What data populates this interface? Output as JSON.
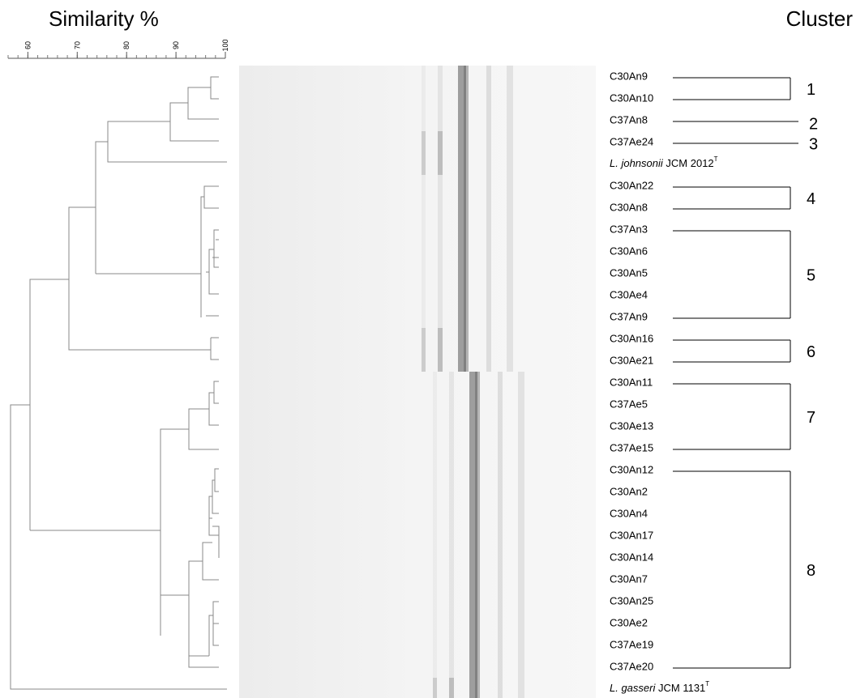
{
  "header": {
    "title": "Similarity %",
    "cluster_title": "Cluster"
  },
  "scale": {
    "xlim": [
      56,
      100
    ],
    "ticks": [
      60,
      70,
      80,
      90,
      100
    ]
  },
  "groups": [
    {
      "cluster": "1",
      "strains": [
        "C30An9",
        "C30An10"
      ]
    },
    {
      "cluster": "2",
      "strains": [
        "C37An8"
      ]
    },
    {
      "cluster": "3",
      "strains": [
        "C37Ae24"
      ]
    },
    {
      "reference": {
        "species": "L. johnsonii",
        "strain": "JCM 2012",
        "sup": "T"
      }
    },
    {
      "cluster": "4",
      "strains": [
        "C30An22",
        "C30An8"
      ]
    },
    {
      "cluster": "5",
      "strains": [
        "C37An3",
        "C30An6",
        "C30An5",
        "C30Ae4",
        "C37An9"
      ]
    },
    {
      "cluster": "6",
      "strains": [
        "C30An16",
        "C30Ae21"
      ]
    },
    {
      "cluster": "7",
      "strains": [
        "C30An11",
        "C37Ae5",
        "C30Ae13",
        "C37Ae15"
      ]
    },
    {
      "cluster": "8",
      "strains": [
        "C30An12",
        "C30An2",
        "C30An4",
        "C30An17",
        "C30An14",
        "C30An7",
        "C30An25",
        "C30Ae2",
        "C37Ae19",
        "C37Ae20"
      ]
    },
    {
      "reference": {
        "species": "L. gasseri",
        "strain": "JCM 1131",
        "sup": "T"
      }
    }
  ]
}
